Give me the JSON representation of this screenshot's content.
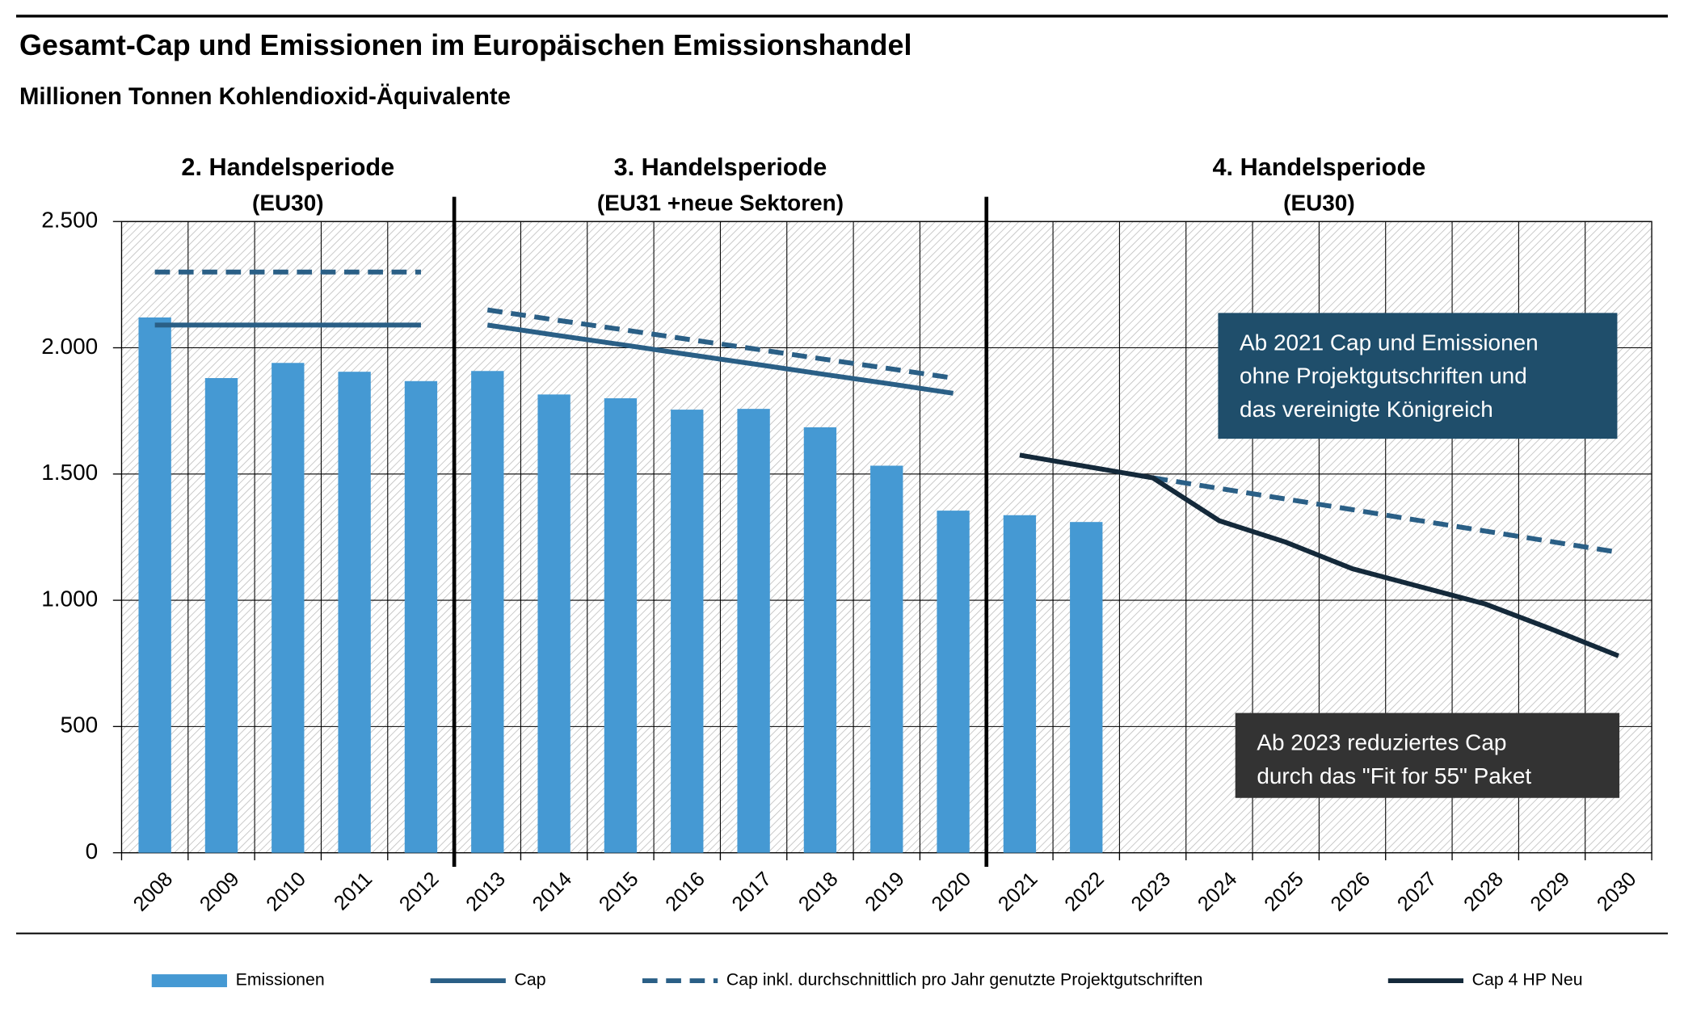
{
  "chart_data": {
    "type": "bar",
    "title": "Gesamt-Cap und Emissionen im Europäischen Emissionshandel",
    "subtitle": "Millionen Tonnen Kohlendioxid-Äquivalente",
    "categories": [
      "2008",
      "2009",
      "2010",
      "2011",
      "2012",
      "2013",
      "2014",
      "2015",
      "2016",
      "2017",
      "2018",
      "2019",
      "2020",
      "2021",
      "2022",
      "2023",
      "2024",
      "2025",
      "2026",
      "2027",
      "2028",
      "2029",
      "2030"
    ],
    "series": [
      {
        "name": "Emissionen",
        "type": "bar",
        "color": "#4599d3",
        "values": [
          2120,
          1880,
          1940,
          1905,
          1868,
          1908,
          1815,
          1800,
          1755,
          1758,
          1685,
          1533,
          1355,
          1337,
          1310,
          null,
          null,
          null,
          null,
          null,
          null,
          null,
          null
        ]
      },
      {
        "name": "Cap",
        "type": "line",
        "dashed": false,
        "color": "#2a5f86",
        "values": [
          2090,
          2090,
          2090,
          2090,
          2090,
          2090,
          2051,
          2013,
          1974,
          1936,
          1897,
          1859,
          1820,
          null,
          null,
          null,
          null,
          null,
          null,
          null,
          null,
          null,
          null
        ]
      },
      {
        "name": "Cap inkl. durchschnittlich pro Jahr genutzte Projektgutschriften",
        "type": "line",
        "dashed": true,
        "color": "#2a5f86",
        "values": [
          2300,
          2300,
          2300,
          2300,
          2300,
          2150,
          2111,
          2073,
          2034,
          1996,
          1957,
          1919,
          1880,
          null,
          null,
          1485,
          1443,
          1401,
          1359,
          1316,
          1274,
          1232,
          1190
        ]
      },
      {
        "name": "Cap 4 HP Neu",
        "type": "line",
        "dashed": false,
        "color": "#14293a",
        "values": [
          null,
          null,
          null,
          null,
          null,
          null,
          null,
          null,
          null,
          null,
          null,
          null,
          null,
          1575,
          1530,
          1485,
          1315,
          1230,
          1125,
          1055,
          985,
          885,
          780
        ]
      }
    ],
    "periods": [
      {
        "title": "2. Handelsperiode",
        "subtitle": "(EU30)",
        "from": "2008",
        "to": "2012"
      },
      {
        "title": "3. Handelsperiode",
        "subtitle": "(EU31 +neue Sektoren)",
        "from": "2013",
        "to": "2020"
      },
      {
        "title": "4. Handelsperiode",
        "subtitle": "(EU30)",
        "from": "2021",
        "to": "2030"
      }
    ],
    "annotations": [
      {
        "lines": [
          "Ab 2021 Cap und Emissionen",
          "ohne Projektgutschriften und",
          "das vereinigte Königreich"
        ],
        "color": "#1f4e6b"
      },
      {
        "lines": [
          "Ab 2023 reduziertes Cap",
          "durch das \"Fit for 55\" Paket"
        ],
        "color": "#333333"
      }
    ],
    "ylim": [
      0,
      2500
    ],
    "yticks": [
      0,
      500,
      {
        "value": 1000,
        "label": "1.000"
      },
      {
        "value": 1500,
        "label": "1.500"
      },
      {
        "value": 2000,
        "label": "2.000"
      },
      {
        "value": 2500,
        "label": "2.500"
      }
    ],
    "grid": true,
    "legend": "bottom"
  }
}
